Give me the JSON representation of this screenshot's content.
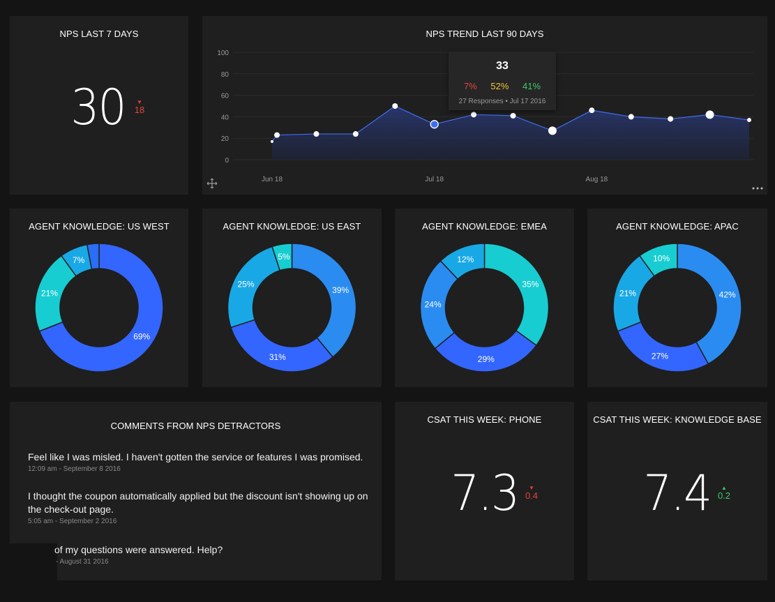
{
  "colors": {
    "background": "#141414",
    "card": "#1f1f1f",
    "line": "#3f6df0",
    "detractor": "#e5443b",
    "passive": "#f0c43a",
    "promoter": "#3ec96b",
    "donut_blue": "#3366ff",
    "donut_mid": "#2a8cf0",
    "donut_sky": "#19a8e6",
    "donut_teal": "#17cdd1"
  },
  "nps7": {
    "title": "NPS LAST 7 DAYS",
    "value": "30",
    "delta": "18",
    "delta_dir": "down"
  },
  "trend": {
    "title": "NPS TREND LAST 90 DAYS",
    "tooltip": {
      "value": "33",
      "detractors": "7%",
      "passives": "52%",
      "promoters": "41%",
      "detail": "27 Responses • Jul 17 2016"
    }
  },
  "chart_data": [
    {
      "type": "area",
      "title": "NPS TREND LAST 90 DAYS",
      "x_ticks": [
        "Jun 18",
        "Jul 18",
        "Aug 18"
      ],
      "y_ticks": [
        "100",
        "80",
        "60",
        "40",
        "20",
        "0"
      ],
      "ylim": [
        0,
        100
      ],
      "x_days": [
        0,
        1,
        9,
        17,
        25,
        33,
        41,
        49,
        57,
        65,
        73,
        81,
        89,
        97
      ],
      "values": [
        17,
        23,
        24,
        24,
        50,
        33,
        42,
        41,
        27,
        46,
        40,
        38,
        42,
        37
      ],
      "point_size": [
        1,
        2,
        2,
        2,
        2,
        3,
        2,
        2,
        3,
        2,
        2,
        2,
        3,
        1.5
      ],
      "highlight_index": 5
    },
    {
      "type": "pie",
      "title": "AGENT KNOWLEDGE: US WEST",
      "slices": [
        {
          "label": "69%",
          "value": 69,
          "color": "#3366ff"
        },
        {
          "label": "21%",
          "value": 21,
          "color": "#17cdd1"
        },
        {
          "label": "7%",
          "value": 7,
          "color": "#19a8e6"
        },
        {
          "label": "",
          "value": 3,
          "color": "#2a6ef5"
        }
      ]
    },
    {
      "type": "pie",
      "title": "AGENT KNOWLEDGE: US EAST",
      "slices": [
        {
          "label": "39%",
          "value": 39,
          "color": "#2a8cf0"
        },
        {
          "label": "31%",
          "value": 31,
          "color": "#3366ff"
        },
        {
          "label": "25%",
          "value": 25,
          "color": "#19a8e6"
        },
        {
          "label": "5%",
          "value": 5,
          "color": "#17cdd1"
        }
      ]
    },
    {
      "type": "pie",
      "title": "AGENT KNOWLEDGE: EMEA",
      "slices": [
        {
          "label": "35%",
          "value": 35,
          "color": "#17cdd1"
        },
        {
          "label": "29%",
          "value": 29,
          "color": "#3366ff"
        },
        {
          "label": "24%",
          "value": 24,
          "color": "#2a8cf0"
        },
        {
          "label": "12%",
          "value": 12,
          "color": "#19a8e6"
        }
      ]
    },
    {
      "type": "pie",
      "title": "AGENT KNOWLEDGE: APAC",
      "slices": [
        {
          "label": "42%",
          "value": 42,
          "color": "#2a8cf0"
        },
        {
          "label": "27%",
          "value": 27,
          "color": "#3366ff"
        },
        {
          "label": "21%",
          "value": 21,
          "color": "#19a8e6"
        },
        {
          "label": "10%",
          "value": 10,
          "color": "#17cdd1"
        }
      ]
    }
  ],
  "donuts": {
    "west": {
      "title": "AGENT KNOWLEDGE: US WEST"
    },
    "east": {
      "title": "AGENT KNOWLEDGE: US EAST"
    },
    "emea": {
      "title": "AGENT KNOWLEDGE: EMEA"
    },
    "apac": {
      "title": "AGENT KNOWLEDGE: APAC"
    }
  },
  "comments": {
    "title": "COMMENTS FROM NPS DETRACTORS",
    "items": [
      {
        "text": "Feel like I was misled. I haven't gotten the service or features I was promised.",
        "time": "12:09 am - September 8 2016"
      },
      {
        "text": "I thought the coupon automatically applied but the discount isn't showing up on the check-out page.",
        "time": "5:05 am - September 2 2016"
      },
      {
        "text": "of my questions were answered. Help?",
        "time": "- August 31 2016"
      }
    ]
  },
  "csat_phone": {
    "title": "CSAT THIS WEEK: PHONE",
    "value": "7.3",
    "delta": "0.4",
    "delta_dir": "down"
  },
  "csat_kb": {
    "title": "CSAT THIS WEEK: KNOWLEDGE BASE",
    "value": "7.4",
    "delta": "0.2",
    "delta_dir": "up"
  },
  "icons": {
    "move": "move-icon",
    "more": "more-icon"
  }
}
